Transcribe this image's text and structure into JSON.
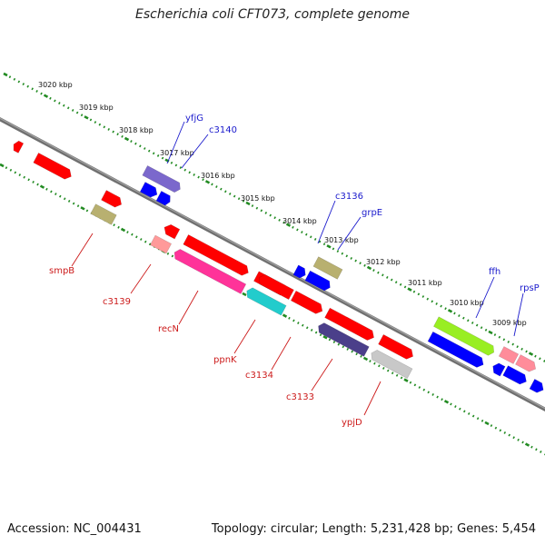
{
  "title": "Escherichia coli CFT073, complete genome",
  "footer": {
    "accession": "Accession: NC_004431",
    "summary": "Topology: circular; Length: 5,231,428 bp; Genes: 5,454"
  },
  "colors": {
    "backbone": "#808080",
    "scale_ticks": "#228b22",
    "forward_label": "#1a1acc",
    "reverse_label": "#cc1a1a"
  },
  "scale_labels": [
    "3020 kbp",
    "3019 kbp",
    "3018 kbp",
    "3017 kbp",
    "3016 kbp",
    "3015 kbp",
    "3014 kbp",
    "3013 kbp",
    "3012 kbp",
    "3011 kbp",
    "3010 kbp",
    "3009 kbp"
  ],
  "genes": {
    "forward": [
      {
        "label": "yfjG",
        "color": "#7b68cc"
      },
      {
        "label": "c3140",
        "color": "#0000ff"
      },
      {
        "label": "c3136",
        "color": "#b8b070"
      },
      {
        "label": "grpE",
        "color": "#0000ff"
      },
      {
        "label": "ffh",
        "color": "#99ee22"
      },
      {
        "label": "rpsP",
        "color": "#ff8c9a"
      }
    ],
    "reverse": [
      {
        "label": "smpB",
        "color": "#b8b070"
      },
      {
        "label": "c3139",
        "color": "#ff9a9a"
      },
      {
        "label": "recN",
        "color": "#ff3399"
      },
      {
        "label": "ppnK",
        "color": "#22cccc"
      },
      {
        "label": "c3134",
        "color": "#ff0000"
      },
      {
        "label": "c3133",
        "color": "#4b3f8a"
      },
      {
        "label": "ypjD",
        "color": "#c8c8c8"
      }
    ]
  }
}
